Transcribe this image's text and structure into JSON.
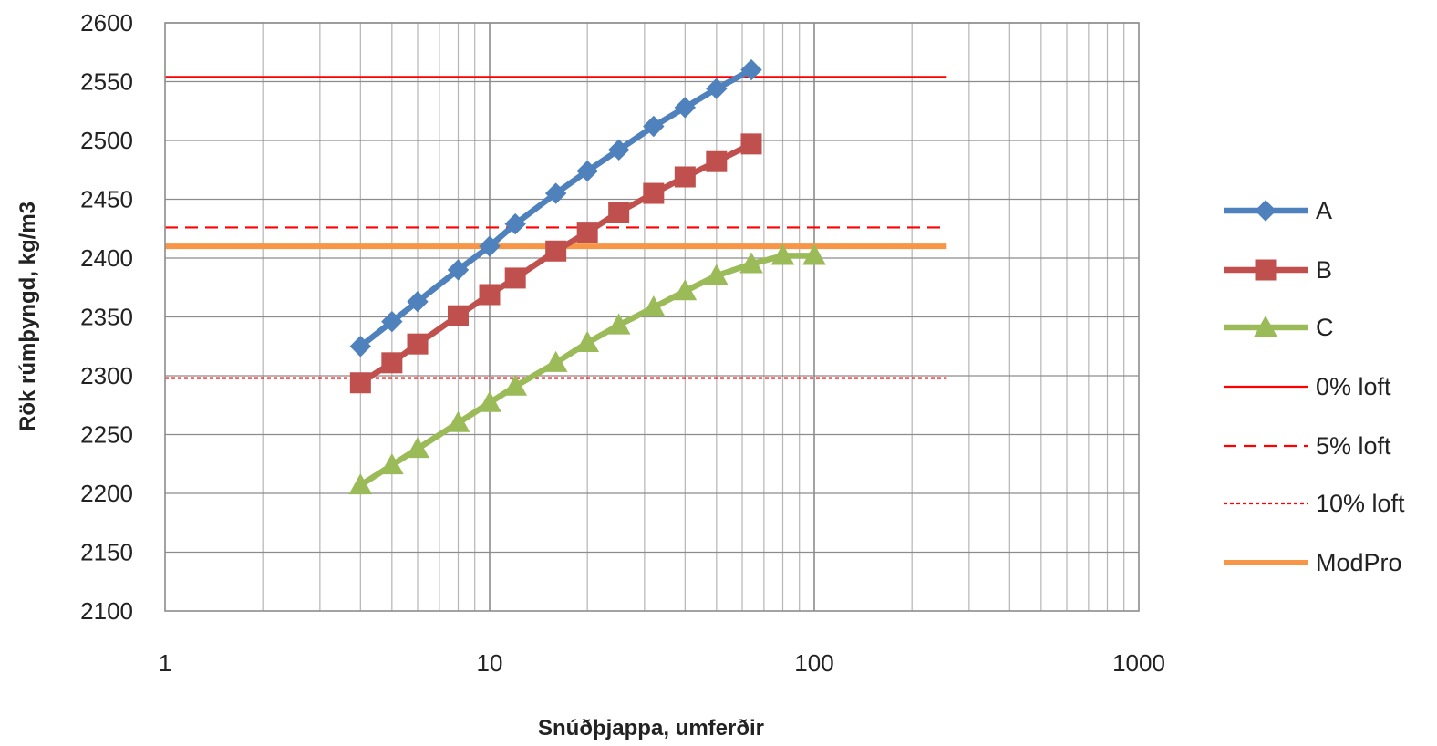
{
  "chart_data": {
    "type": "line",
    "title": "",
    "xlabel": "Snúðþjappa, umferðir",
    "ylabel": "Rök rúmþyngd, kg/m3",
    "x_scale": "log",
    "xlim": [
      1,
      1000
    ],
    "ylim": [
      2100,
      2600
    ],
    "x_ticks": [
      "1",
      "10",
      "100",
      "1000"
    ],
    "y_ticks": [
      "2100",
      "2150",
      "2200",
      "2250",
      "2300",
      "2350",
      "2400",
      "2450",
      "2500",
      "2550",
      "2600"
    ],
    "grid": true,
    "legend_position": "right",
    "series": [
      {
        "name": "A",
        "color": "#4F81BD",
        "marker": "diamond",
        "dash": "solid",
        "x": [
          4,
          5,
          6,
          8,
          10,
          12,
          16,
          20,
          25,
          32,
          40,
          50,
          64
        ],
        "y": [
          2325,
          2346,
          2363,
          2390,
          2410,
          2429,
          2455,
          2474,
          2492,
          2512,
          2528,
          2544,
          2560
        ]
      },
      {
        "name": "B",
        "color": "#C0504D",
        "marker": "square",
        "dash": "solid",
        "x": [
          4,
          5,
          6,
          8,
          10,
          12,
          16,
          20,
          25,
          32,
          40,
          50,
          64
        ],
        "y": [
          2294,
          2311,
          2327,
          2351,
          2369,
          2383,
          2406,
          2422,
          2439,
          2455,
          2469,
          2482,
          2497
        ]
      },
      {
        "name": "C",
        "color": "#9BBB59",
        "marker": "triangle",
        "dash": "solid",
        "x": [
          4,
          5,
          6,
          8,
          10,
          12,
          16,
          20,
          25,
          32,
          40,
          50,
          64,
          80,
          100
        ],
        "y": [
          2207,
          2224,
          2238,
          2260,
          2277,
          2291,
          2311,
          2328,
          2343,
          2358,
          2372,
          2385,
          2395,
          2402,
          2402
        ]
      },
      {
        "name": "0% loft",
        "color": "#FF0000",
        "marker": "none",
        "dash": "solid",
        "x": [
          1,
          256
        ],
        "y": [
          2554,
          2554
        ]
      },
      {
        "name": "5% loft",
        "color": "#FF0000",
        "marker": "none",
        "dash": "dashed",
        "x": [
          1,
          256
        ],
        "y": [
          2426,
          2426
        ]
      },
      {
        "name": "10% loft",
        "color": "#FF0000",
        "marker": "none",
        "dash": "dotted",
        "x": [
          1,
          256
        ],
        "y": [
          2298,
          2298
        ]
      },
      {
        "name": "ModPro",
        "color": "#F79646",
        "marker": "none",
        "dash": "solid-thick",
        "x": [
          1,
          256
        ],
        "y": [
          2410,
          2410
        ]
      }
    ]
  }
}
